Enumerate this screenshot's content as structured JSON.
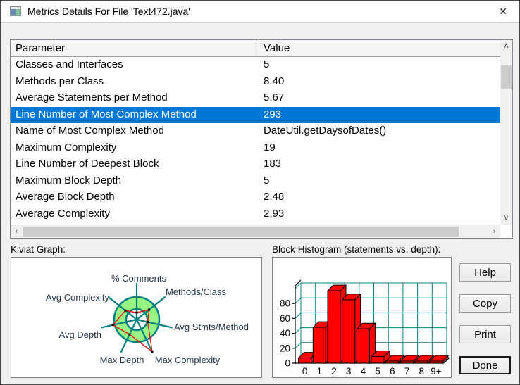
{
  "window": {
    "title": "Metrics Details For File 'Text472.java'",
    "close_glyph": "✕"
  },
  "metrics_table": {
    "columns": [
      "Parameter",
      "Value"
    ],
    "rows": [
      {
        "parameter": "Classes and Interfaces",
        "value": "5",
        "selected": false
      },
      {
        "parameter": "Methods per Class",
        "value": "8.40",
        "selected": false
      },
      {
        "parameter": "Average Statements per Method",
        "value": "5.67",
        "selected": false
      },
      {
        "parameter": "Line Number of Most Complex Method",
        "value": "293",
        "selected": true
      },
      {
        "parameter": "Name of Most Complex Method",
        "value": "DateUtil.getDaysofDates()",
        "selected": false
      },
      {
        "parameter": "Maximum Complexity",
        "value": "19",
        "selected": false
      },
      {
        "parameter": "Line Number of Deepest Block",
        "value": "183",
        "selected": false
      },
      {
        "parameter": "Maximum Block Depth",
        "value": "5",
        "selected": false
      },
      {
        "parameter": "Average Block Depth",
        "value": "2.48",
        "selected": false
      },
      {
        "parameter": "Average Complexity",
        "value": "2.93",
        "selected": false
      }
    ],
    "scrollbar_glyphs": {
      "up": "∧",
      "down": "∨",
      "left": "‹",
      "right": "›"
    }
  },
  "panels": {
    "kiviat_label": "Kiviat Graph:",
    "histogram_label": "Block Histogram (statements vs. depth):"
  },
  "buttons": [
    {
      "label": "Help",
      "default": false
    },
    {
      "label": "Copy",
      "default": false
    },
    {
      "label": "Print",
      "default": false
    },
    {
      "label": "Done",
      "default": true
    }
  ],
  "colors": {
    "selection": "#0078d7",
    "teal": "#008080",
    "ring_fill": "#98f583",
    "polygon_red": "#ff0000",
    "bar_red": "#ff0000",
    "kiviat_label_color": "#1d3146"
  },
  "chart_data": [
    {
      "type": "radar",
      "title": "Kiviat Graph",
      "axes": [
        "% Comments",
        "Methods/Class",
        "Avg Stmts/Method",
        "Max Complexity",
        "Max Depth",
        "Avg Depth",
        "Avg Complexity"
      ],
      "values_fraction_of_outer_ring": [
        0.31,
        0.7,
        0.5,
        1.59,
        0.73,
        1.08,
        0.64
      ],
      "ring_inner_fraction": 0.47,
      "note": "red polygon of metric values over green acceptable-range ring; spokes extend past ring"
    },
    {
      "type": "bar",
      "title": "Block Histogram (statements vs. depth)",
      "categories": [
        "0",
        "1",
        "2",
        "3",
        "4",
        "5",
        "6",
        "7",
        "8",
        "9+"
      ],
      "values": [
        7,
        48,
        97,
        85,
        46,
        9,
        0,
        0,
        0,
        0
      ],
      "xlabel": "depth",
      "ylabel": "statements",
      "yticks": [
        0,
        20,
        40,
        60,
        80
      ],
      "ylim": [
        0,
        100
      ],
      "grid": true,
      "style": "3d-red-bars-teal-grid"
    }
  ]
}
